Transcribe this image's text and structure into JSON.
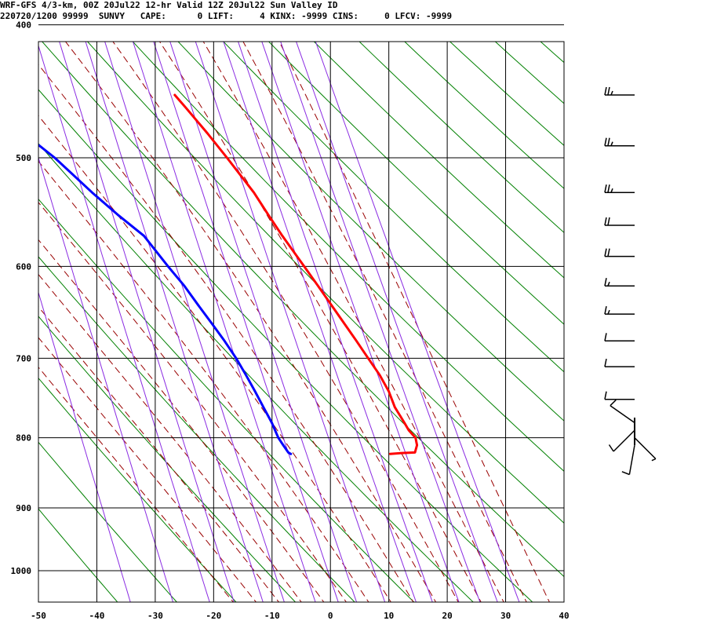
{
  "header": {
    "line1": "WRF-GFS 4/3-km, 00Z 20Jul22 12-hr Valid 12Z 20Jul22 Sun Valley ID",
    "line2": "220720/1200 99999  SUNVY   CAPE:      0 LIFT:     4 KINX: -9999 CINS:     0 LFCV: -9999"
  },
  "chart_data": {
    "type": "line",
    "title": "",
    "xlabel": "",
    "ylabel": "",
    "xlim": [
      -50,
      40
    ],
    "ylim": [
      1050,
      400
    ],
    "y_scale": "log-pressure",
    "x_ticks": [
      -50,
      -40,
      -30,
      -20,
      -10,
      0,
      10,
      20,
      30,
      40
    ],
    "y_ticks": [
      400,
      500,
      600,
      700,
      800,
      900,
      1000
    ],
    "grid": true,
    "skew": "temperature isotherms slanted to the right",
    "background_lines": {
      "dry_adiabats_color": "#008000",
      "moist_adiabats_color": "#990000",
      "mixing_ratio_color": "#8a2be2"
    },
    "series": [
      {
        "role": "temperature",
        "color": "#ff0000",
        "points": [
          {
            "p": 822,
            "t": 15.3
          },
          {
            "p": 821,
            "t": 17.0
          },
          {
            "p": 820,
            "t": 19.6
          },
          {
            "p": 810,
            "t": 20.2
          },
          {
            "p": 800,
            "t": 20.2
          },
          {
            "p": 790,
            "t": 19.3
          },
          {
            "p": 780,
            "t": 18.8
          },
          {
            "p": 760,
            "t": 17.7
          },
          {
            "p": 740,
            "t": 17.2
          },
          {
            "p": 720,
            "t": 16.2
          },
          {
            "p": 700,
            "t": 14.8
          },
          {
            "p": 680,
            "t": 13.4
          },
          {
            "p": 650,
            "t": 11.1
          },
          {
            "p": 620,
            "t": 8.7
          },
          {
            "p": 600,
            "t": 7.0
          },
          {
            "p": 570,
            "t": 4.3
          },
          {
            "p": 550,
            "t": 2.6
          },
          {
            "p": 530,
            "t": 0.9
          },
          {
            "p": 500,
            "t": -2.5
          },
          {
            "p": 480,
            "t": -5.0
          },
          {
            "p": 460,
            "t": -7.8
          },
          {
            "p": 450,
            "t": -9.3
          }
        ]
      },
      {
        "role": "dewpoint",
        "color": "#0000ff",
        "points": [
          {
            "p": 822,
            "t": -1.7
          },
          {
            "p": 820,
            "t": -2.1
          },
          {
            "p": 810,
            "t": -2.7
          },
          {
            "p": 800,
            "t": -3.3
          },
          {
            "p": 780,
            "t": -3.9
          },
          {
            "p": 760,
            "t": -4.8
          },
          {
            "p": 740,
            "t": -5.7
          },
          {
            "p": 720,
            "t": -6.7
          },
          {
            "p": 700,
            "t": -7.8
          },
          {
            "p": 680,
            "t": -9.2
          },
          {
            "p": 660,
            "t": -10.8
          },
          {
            "p": 640,
            "t": -12.5
          },
          {
            "p": 620,
            "t": -14.2
          },
          {
            "p": 600,
            "t": -16.3
          },
          {
            "p": 570,
            "t": -19.4
          },
          {
            "p": 550,
            "t": -23.2
          },
          {
            "p": 530,
            "t": -26.8
          },
          {
            "p": 500,
            "t": -32.0
          },
          {
            "p": 490,
            "t": -34.2
          },
          {
            "p": 470,
            "t": -40.0
          },
          {
            "p": 450,
            "t": -46.5
          }
        ]
      }
    ],
    "wind_barbs": [
      {
        "p": 450,
        "dir": 270,
        "speed": 25
      },
      {
        "p": 490,
        "dir": 270,
        "speed": 25
      },
      {
        "p": 530,
        "dir": 270,
        "speed": 25
      },
      {
        "p": 560,
        "dir": 270,
        "speed": 20
      },
      {
        "p": 590,
        "dir": 270,
        "speed": 20
      },
      {
        "p": 620,
        "dir": 270,
        "speed": 15
      },
      {
        "p": 650,
        "dir": 270,
        "speed": 15
      },
      {
        "p": 680,
        "dir": 270,
        "speed": 10
      },
      {
        "p": 710,
        "dir": 270,
        "speed": 10
      },
      {
        "p": 750,
        "dir": 270,
        "speed": 10
      },
      {
        "p": 780,
        "dir": 305,
        "speed": 10
      },
      {
        "p": 790,
        "dir": 225,
        "speed": 10
      },
      {
        "p": 800,
        "dir": 135,
        "speed": 5
      },
      {
        "p": 810,
        "dir": 190,
        "speed": 10
      }
    ]
  }
}
